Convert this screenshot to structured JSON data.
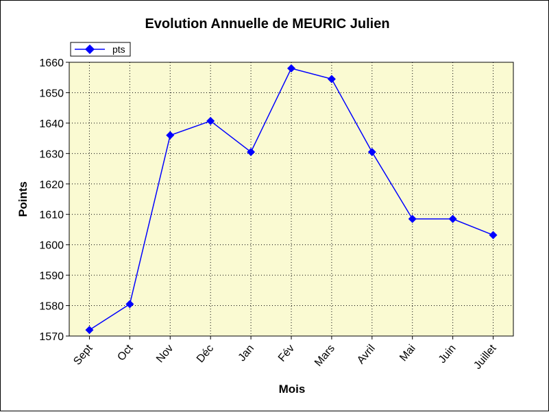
{
  "chart_data": {
    "type": "line",
    "title": "Evolution Annuelle de MEURIC Julien",
    "xlabel": "Mois",
    "ylabel": "Points",
    "categories": [
      "Sept",
      "Oct",
      "Nov",
      "Déc",
      "Jan",
      "Fév",
      "Mars",
      "Avril",
      "Mai",
      "Juin",
      "Juillet"
    ],
    "series": [
      {
        "name": "pts",
        "values": [
          1572,
          1580.5,
          1636,
          1640.7,
          1630.5,
          1658,
          1654.5,
          1630.5,
          1608.5,
          1608.5,
          1603.2
        ]
      }
    ],
    "ylim": [
      1570,
      1660
    ],
    "yticks": [
      1570,
      1580,
      1590,
      1600,
      1610,
      1620,
      1630,
      1640,
      1650,
      1660
    ],
    "grid": true,
    "legend_position": "top-left",
    "colors": {
      "series": "#0000ff",
      "plot_background": "#fafad2",
      "grid": "#000000"
    }
  }
}
